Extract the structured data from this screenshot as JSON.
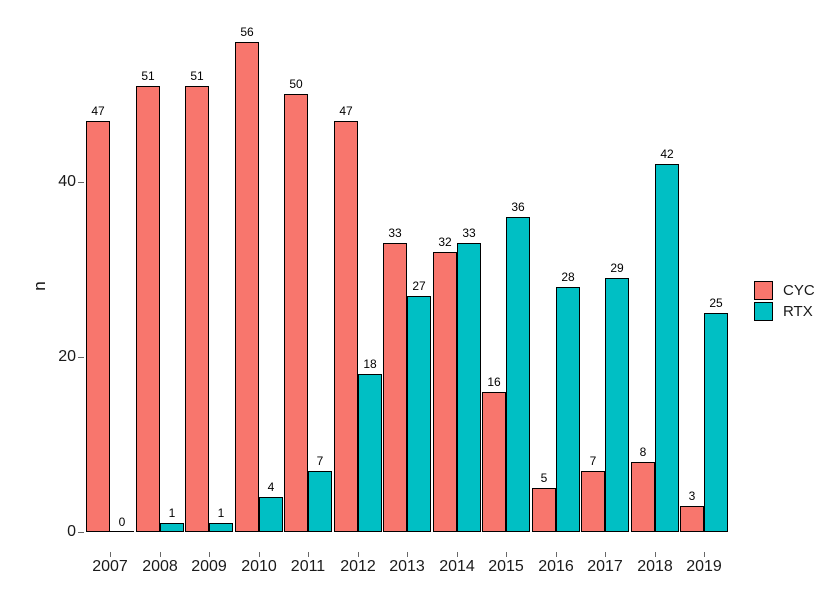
{
  "chart_data": {
    "type": "bar",
    "title": "",
    "xlabel": "",
    "ylabel": "n",
    "categories": [
      "2007",
      "2008",
      "2009",
      "2010",
      "2011",
      "2012",
      "2013",
      "2014",
      "2015",
      "2016",
      "2017",
      "2018",
      "2019"
    ],
    "series": [
      {
        "name": "CYC",
        "color": "#F8766D",
        "values": [
          47,
          51,
          51,
          56,
          50,
          47,
          33,
          32,
          16,
          5,
          7,
          8,
          3
        ]
      },
      {
        "name": "RTX",
        "color": "#00BFC4",
        "values": [
          0,
          1,
          1,
          4,
          7,
          18,
          27,
          33,
          36,
          28,
          29,
          42,
          25
        ]
      }
    ],
    "bar_value_labels": true,
    "yticks": [
      0,
      20,
      40
    ],
    "ylim": [
      0,
      58
    ],
    "grid": false,
    "legend_position": "right",
    "bar_outline_color": "#000000",
    "background_color": "#FFFFFF"
  }
}
